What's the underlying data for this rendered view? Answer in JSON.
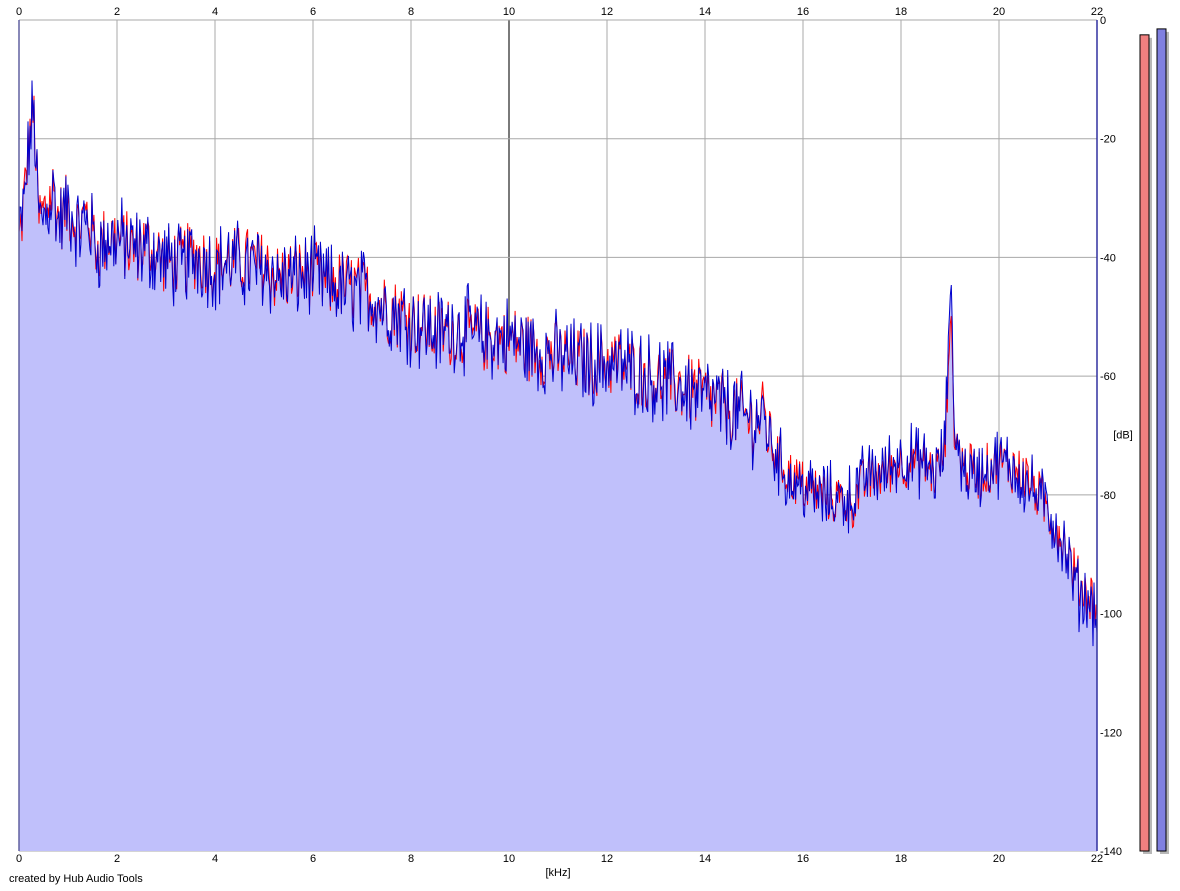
{
  "chart_data": {
    "type": "area",
    "xlabel": "[kHz]",
    "ylabel": "[dB]",
    "xlim": [
      0,
      22
    ],
    "ylim": [
      -140,
      0
    ],
    "x_ticks": [
      0,
      2,
      4,
      6,
      8,
      10,
      12,
      14,
      16,
      18,
      20,
      22
    ],
    "y_ticks": [
      0,
      -20,
      -40,
      -60,
      -80,
      -100,
      -120,
      -140
    ],
    "grid": true,
    "colors": {
      "fill": "#c0c0fb",
      "left": "#ff0000",
      "right": "#0000cc",
      "level_left": "#f08080",
      "level_right": "#8080e0",
      "grid": "#a8a8a8"
    },
    "series": [
      {
        "x": [
          0.0,
          0.1,
          0.2,
          0.3,
          0.4,
          0.5,
          0.6,
          0.7,
          0.8,
          1.0,
          1.2,
          1.4,
          1.6,
          1.8,
          2.0,
          2.3,
          2.6,
          3.0,
          3.3,
          3.6,
          4.0,
          4.3,
          4.6,
          5.0,
          5.3,
          5.6,
          6.0,
          6.3,
          6.6,
          7.0,
          7.5,
          8.0,
          8.5,
          9.0,
          9.5,
          10.0,
          10.5,
          11.0,
          11.5,
          12.0,
          12.5,
          13.0,
          13.5,
          14.0,
          14.5,
          15.0,
          15.2,
          15.4,
          15.7,
          16.0,
          16.3,
          16.6,
          17.0,
          17.3,
          17.6,
          18.0,
          18.4,
          18.7,
          18.9,
          19.0,
          19.1,
          19.3,
          19.6,
          20.0,
          20.3,
          20.6,
          21.0,
          21.3,
          21.6,
          21.9,
          22.0
        ],
        "values": [
          -37,
          -30,
          -20,
          -15,
          -33,
          -32,
          -30,
          -28,
          -33,
          -31,
          -34,
          -32,
          -38,
          -36,
          -36,
          -38,
          -37,
          -40,
          -40,
          -39,
          -41,
          -40,
          -40,
          -41,
          -43,
          -42,
          -42,
          -44,
          -44,
          -45,
          -48,
          -50,
          -52,
          -52,
          -53,
          -53,
          -55,
          -56,
          -57,
          -57,
          -58,
          -60,
          -61,
          -63,
          -65,
          -67,
          -66,
          -72,
          -76,
          -78,
          -79,
          -80,
          -81,
          -77,
          -76,
          -74,
          -74,
          -76,
          -72,
          -48,
          -70,
          -75,
          -76,
          -74,
          -75,
          -77,
          -82,
          -87,
          -94,
          -97,
          -99
        ]
      },
      {
        "x": [
          0.0,
          0.1,
          0.2,
          0.3,
          0.4,
          0.5,
          0.6,
          0.7,
          0.8,
          1.0,
          1.2,
          1.4,
          1.6,
          1.8,
          2.0,
          2.3,
          2.6,
          3.0,
          3.3,
          3.6,
          4.0,
          4.3,
          4.6,
          5.0,
          5.3,
          5.6,
          6.0,
          6.3,
          6.6,
          7.0,
          7.5,
          8.0,
          8.5,
          9.0,
          9.5,
          10.0,
          10.5,
          11.0,
          11.5,
          12.0,
          12.5,
          13.0,
          13.5,
          14.0,
          14.5,
          15.0,
          15.2,
          15.4,
          15.7,
          16.0,
          16.3,
          16.6,
          17.0,
          17.3,
          17.6,
          18.0,
          18.4,
          18.7,
          18.9,
          19.0,
          19.1,
          19.3,
          19.6,
          20.0,
          20.3,
          20.6,
          21.0,
          21.3,
          21.6,
          21.9,
          22.0
        ],
        "values": [
          -36,
          -31,
          -21,
          -14,
          -33,
          -33,
          -31,
          -28,
          -34,
          -31,
          -35,
          -33,
          -38,
          -37,
          -36,
          -38,
          -38,
          -40,
          -41,
          -39,
          -41,
          -40,
          -41,
          -41,
          -43,
          -43,
          -42,
          -44,
          -45,
          -45,
          -48,
          -50,
          -52,
          -51,
          -53,
          -53,
          -55,
          -56,
          -57,
          -57,
          -58,
          -60,
          -61,
          -63,
          -65,
          -67,
          -66,
          -72,
          -77,
          -78,
          -80,
          -80,
          -80,
          -76,
          -76,
          -73,
          -74,
          -76,
          -72,
          -43,
          -69,
          -76,
          -76,
          -74,
          -75,
          -78,
          -82,
          -88,
          -96,
          -98,
          -100
        ]
      }
    ],
    "level_meters": [
      -2.5,
      -1.5
    ]
  },
  "footer": {
    "credit": "created by Hub Audio Tools"
  }
}
